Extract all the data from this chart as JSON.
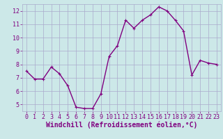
{
  "x": [
    0,
    1,
    2,
    3,
    4,
    5,
    6,
    7,
    8,
    9,
    10,
    11,
    12,
    13,
    14,
    15,
    16,
    17,
    18,
    19,
    20,
    21,
    22,
    23
  ],
  "y": [
    7.5,
    6.9,
    6.9,
    7.8,
    7.3,
    6.4,
    4.8,
    4.7,
    4.7,
    5.8,
    8.6,
    9.4,
    11.3,
    10.7,
    11.3,
    11.7,
    12.3,
    12.0,
    11.3,
    10.5,
    7.2,
    8.3,
    8.1,
    8.0
  ],
  "line_color": "#800080",
  "marker": "+",
  "marker_color": "#800080",
  "bg_color": "#cce8e8",
  "grid_color": "#aaaacc",
  "xlabel": "Windchill (Refroidissement éolien,°C)",
  "xlabel_color": "#800080",
  "ylim": [
    4.5,
    12.5
  ],
  "xlim": [
    -0.5,
    23.5
  ],
  "yticks": [
    5,
    6,
    7,
    8,
    9,
    10,
    11,
    12
  ],
  "xticks": [
    0,
    1,
    2,
    3,
    4,
    5,
    6,
    7,
    8,
    9,
    10,
    11,
    12,
    13,
    14,
    15,
    16,
    17,
    18,
    19,
    20,
    21,
    22,
    23
  ],
  "tick_label_color": "#800080",
  "tick_fontsize": 6.0,
  "xlabel_fontsize": 7.0,
  "line_width": 1.0,
  "marker_size": 3.5
}
